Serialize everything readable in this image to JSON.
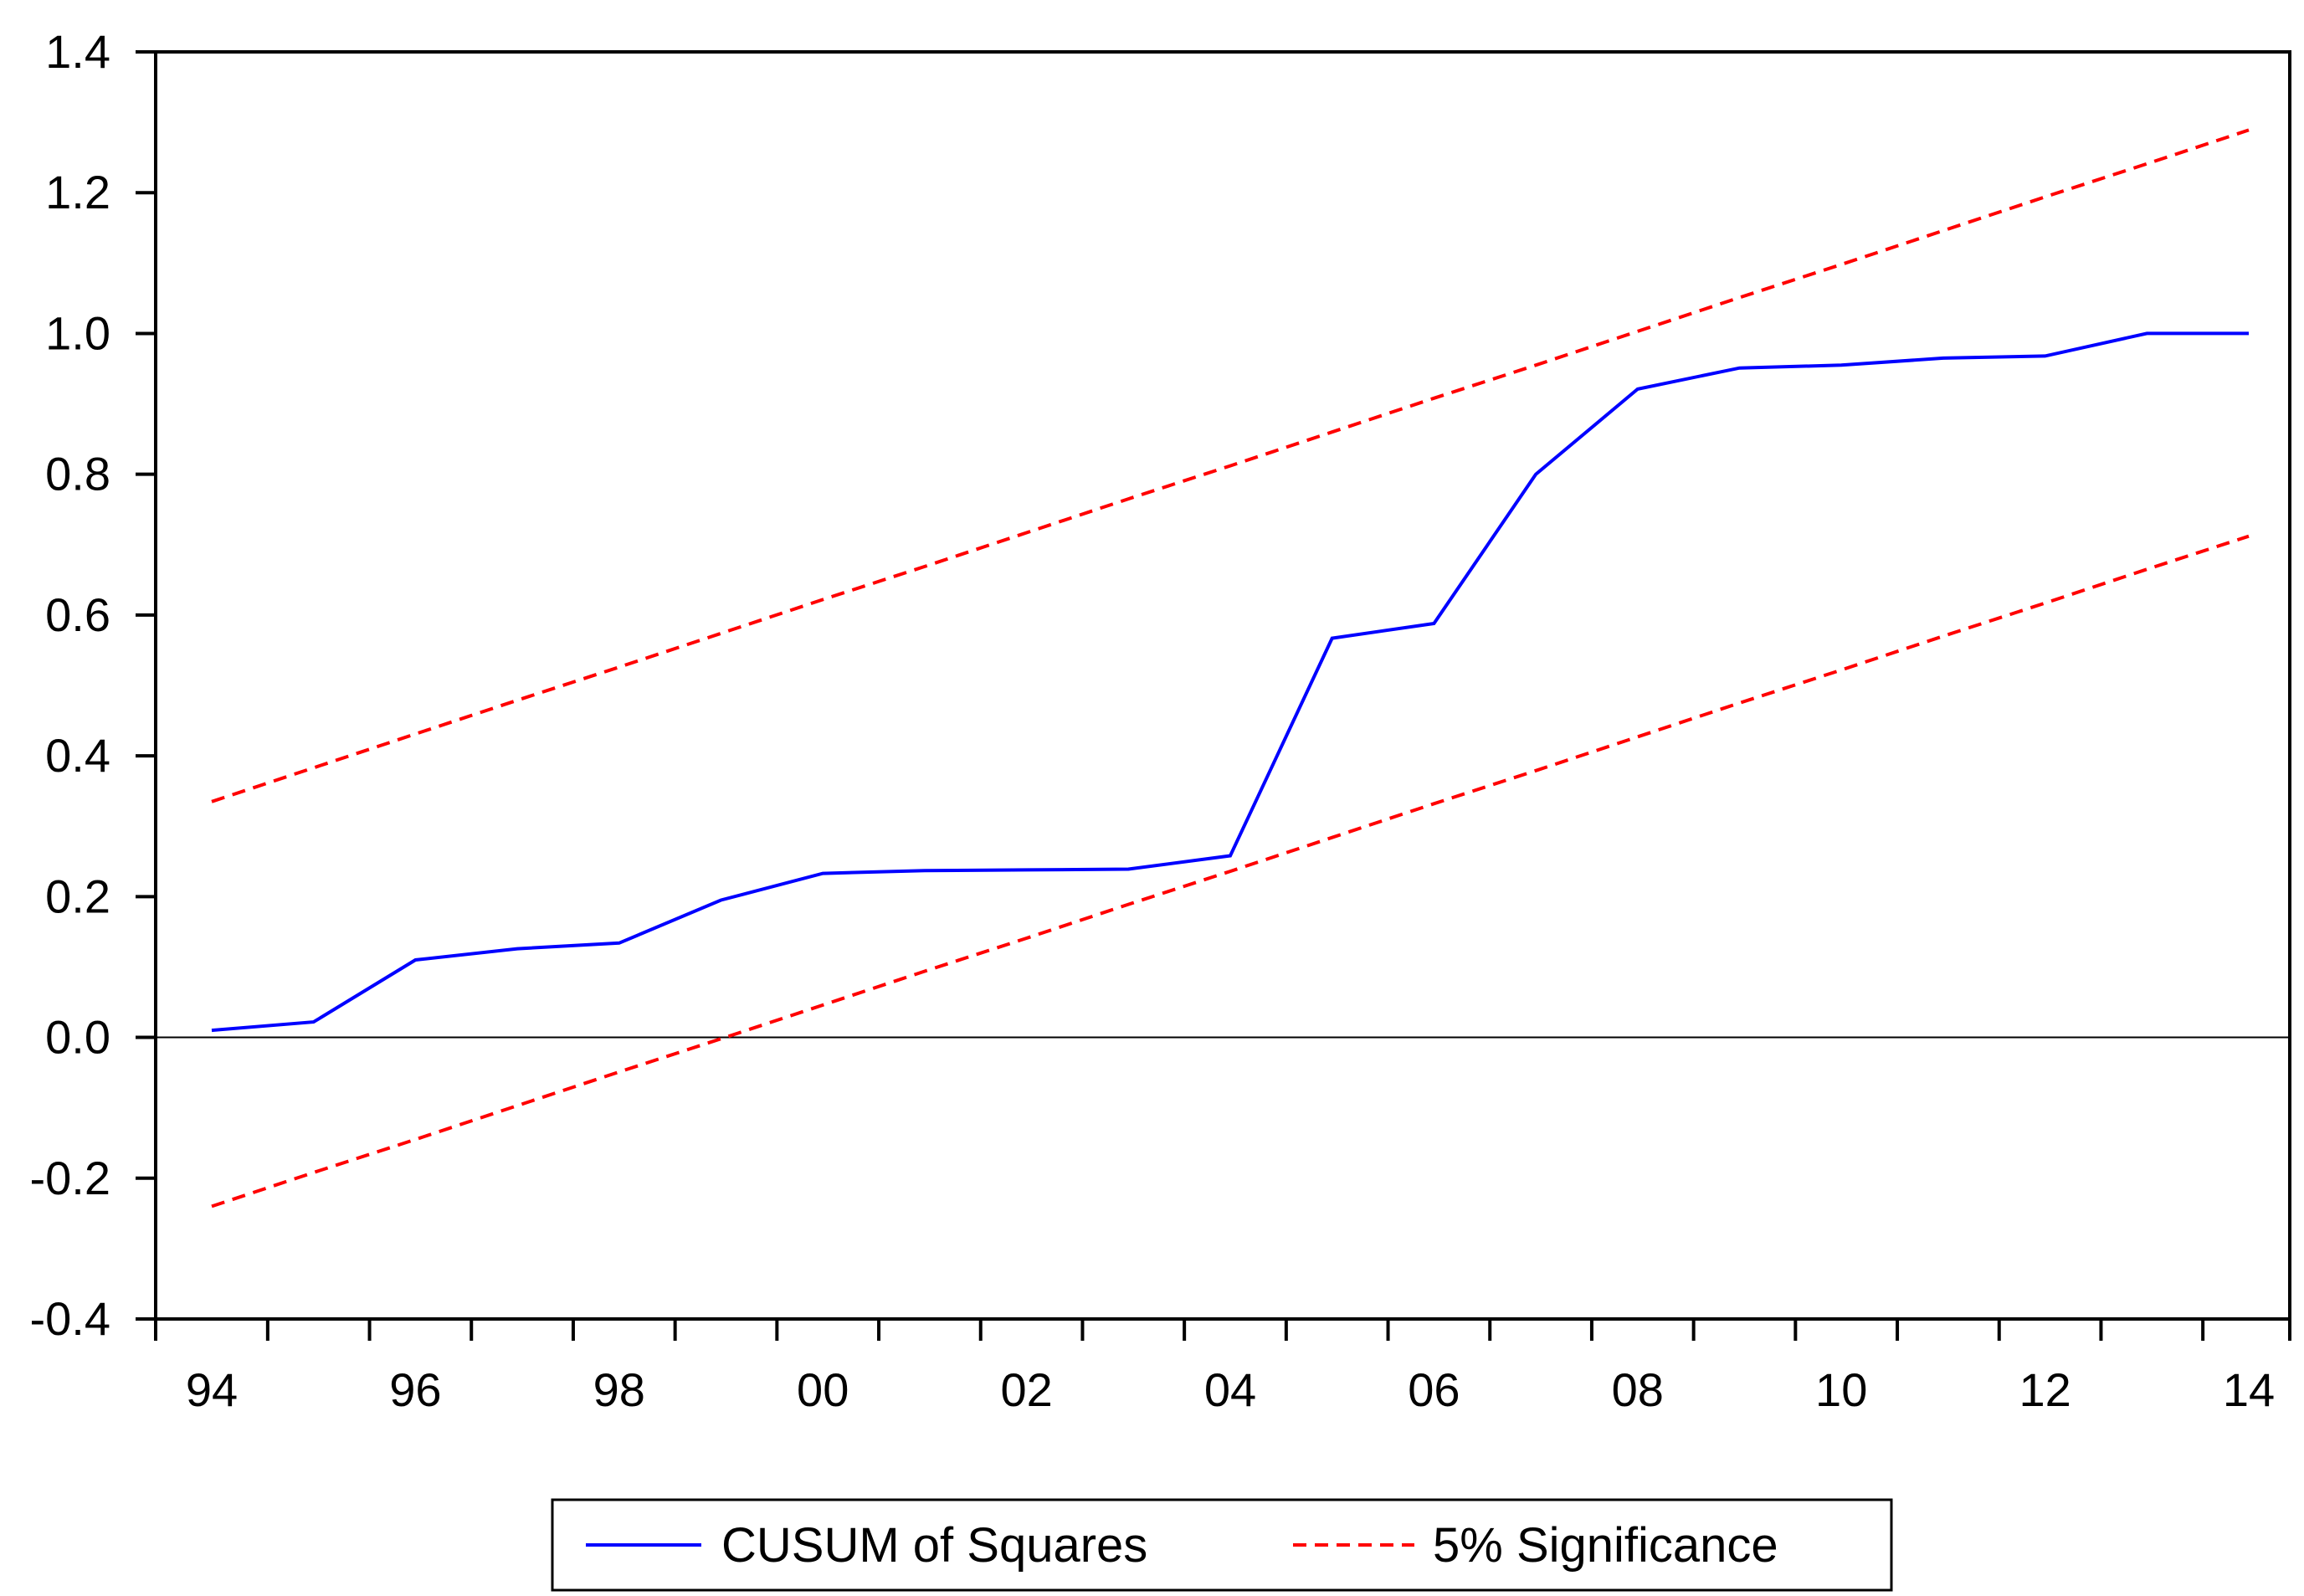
{
  "chart_data": {
    "type": "line",
    "title": "",
    "xlabel": "",
    "ylabel": "",
    "x": [
      1994,
      1995,
      1996,
      1997,
      1998,
      1999,
      2000,
      2001,
      2002,
      2003,
      2004,
      2005,
      2006,
      2007,
      2008,
      2009,
      2010,
      2011,
      2012,
      2013,
      2014
    ],
    "xlim": [
      1993.5,
      2014.5
    ],
    "ylim": [
      -0.4,
      1.4
    ],
    "x_ticks": [
      "94",
      "96",
      "98",
      "00",
      "02",
      "04",
      "06",
      "08",
      "10",
      "12",
      "14"
    ],
    "y_ticks": [
      "-0.4",
      "-0.2",
      "0.0",
      "0.2",
      "0.4",
      "0.6",
      "0.8",
      "1.0",
      "1.2",
      "1.4"
    ],
    "zero_line": true,
    "grid": false,
    "legend_position": "bottom",
    "series": [
      {
        "name": "CUSUM of Squares",
        "color": "#0000ff",
        "style": "solid",
        "values": [
          0.01,
          0.022,
          0.11,
          0.126,
          0.134,
          0.195,
          0.233,
          0.237,
          0.238,
          0.239,
          0.258,
          0.567,
          0.588,
          0.8,
          0.921,
          0.951,
          0.955,
          0.965,
          0.968,
          1.0,
          1.0
        ]
      },
      {
        "name": "5% Significance",
        "color": "#ff0000",
        "style": "dashed",
        "values": [
          0.335,
          0.383,
          0.431,
          0.479,
          0.526,
          0.574,
          0.622,
          0.669,
          0.717,
          0.765,
          0.812,
          0.86,
          0.908,
          0.955,
          1.003,
          1.051,
          1.098,
          1.146,
          1.194,
          1.241,
          1.289
        ]
      },
      {
        "name": "5% Significance",
        "color": "#ff0000",
        "style": "dashed",
        "values": [
          -0.24,
          -0.192,
          -0.145,
          -0.097,
          -0.049,
          -0.002,
          0.046,
          0.094,
          0.141,
          0.189,
          0.236,
          0.284,
          0.332,
          0.379,
          0.427,
          0.475,
          0.522,
          0.57,
          0.617,
          0.665,
          0.712
        ]
      }
    ],
    "legend": [
      {
        "label": "CUSUM of Squares",
        "color": "#0000ff",
        "style": "solid"
      },
      {
        "label": "5% Significance",
        "color": "#ff0000",
        "style": "dashed"
      }
    ]
  }
}
